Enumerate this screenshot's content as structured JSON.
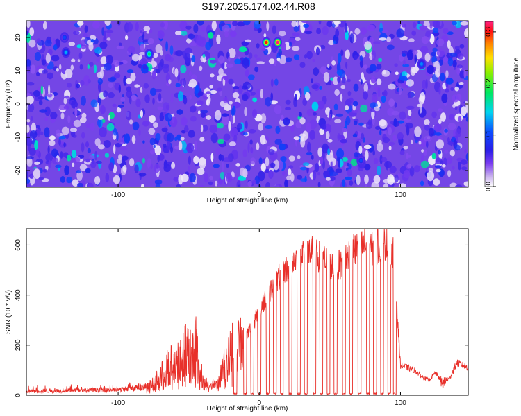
{
  "figure_title": "S197.2025.174.02.44.R08",
  "colors": {
    "snr_line": "#e8302a",
    "axes": "#000000",
    "low_amplitude": "#b79be8",
    "mid_amplitude": "#3b1ee0"
  },
  "chart_data": [
    {
      "type": "heatmap",
      "title": "",
      "xlabel": "Height of straight line (km)",
      "ylabel": "Frequency (Hz)",
      "xlim": [
        -165,
        148
      ],
      "ylim": [
        -25,
        25
      ],
      "x_ticks": [
        -100,
        0,
        100
      ],
      "x_tick_labels": [
        "-100",
        "0",
        "100"
      ],
      "y_ticks": [
        -20,
        -10,
        0,
        10,
        20
      ],
      "y_tick_labels": [
        "-20",
        "-10",
        "0",
        "10",
        "20"
      ],
      "colorbar": {
        "label": "Normalized spectral amplitude",
        "range": [
          0,
          0.32
        ],
        "ticks": [
          0.0,
          0.1,
          0.2,
          0.3
        ],
        "tick_labels": [
          "0.0",
          "0.1",
          "0.2",
          "0.3"
        ],
        "colormap": "rainbow (white-violet-blue-cyan-green-yellow-red-magenta)"
      },
      "description_values": {
        "background_amplitude": 0.03,
        "hotspots": [
          {
            "x": 5,
            "y": 18.5,
            "amplitude": 0.3
          },
          {
            "x": 13,
            "y": 18.5,
            "amplitude": 0.32
          },
          {
            "x": -78,
            "y": 15,
            "amplitude": 0.18
          },
          {
            "x": -137,
            "y": 15.5,
            "amplitude": 0.13
          },
          {
            "x": 115,
            "y": 12,
            "amplitude": 0.12
          },
          {
            "x": -138,
            "y": 20,
            "amplitude": 0.1
          },
          {
            "x": 72,
            "y": -17,
            "amplitude": 0.1
          }
        ]
      }
    },
    {
      "type": "line",
      "title": "",
      "xlabel": "Height of straight line (km)",
      "ylabel": "SNR (10 * v/v)",
      "xlim": [
        -165,
        148
      ],
      "ylim": [
        0,
        665
      ],
      "x_ticks": [
        -100,
        0,
        100
      ],
      "x_tick_labels": [
        "-100",
        "0",
        "100"
      ],
      "y_ticks": [
        0,
        200,
        400,
        600
      ],
      "y_tick_labels": [
        "0",
        "200",
        "400",
        "600"
      ],
      "series": [
        {
          "x": [
            -165,
            -140,
            -120,
            -100,
            -90,
            -80,
            -75,
            -70,
            -65,
            -60,
            -55,
            -50,
            -45,
            -40,
            -35,
            -30,
            -25,
            -20,
            -15,
            -10,
            -5,
            0,
            5,
            10,
            15,
            20,
            25,
            30,
            35,
            40,
            45,
            50,
            55,
            60,
            65,
            70,
            75,
            80,
            85,
            90,
            95,
            100,
            105,
            110,
            115,
            120,
            125,
            130,
            135,
            140,
            148
          ],
          "y": [
            15,
            18,
            20,
            22,
            28,
            35,
            50,
            80,
            120,
            140,
            170,
            200,
            210,
            60,
            45,
            40,
            120,
            190,
            210,
            230,
            280,
            330,
            400,
            430,
            480,
            510,
            540,
            570,
            575,
            560,
            545,
            520,
            510,
            540,
            575,
            590,
            600,
            585,
            595,
            610,
            570,
            120,
            110,
            100,
            75,
            60,
            90,
            45,
            70,
            130,
            110
          ]
        }
      ],
      "dropouts_to_zero_near_x": [
        -17,
        -10,
        -5,
        0,
        6,
        11,
        16,
        22,
        28,
        33,
        39,
        44,
        49,
        54,
        60,
        65,
        71,
        77,
        82,
        87,
        92,
        96
      ]
    }
  ]
}
